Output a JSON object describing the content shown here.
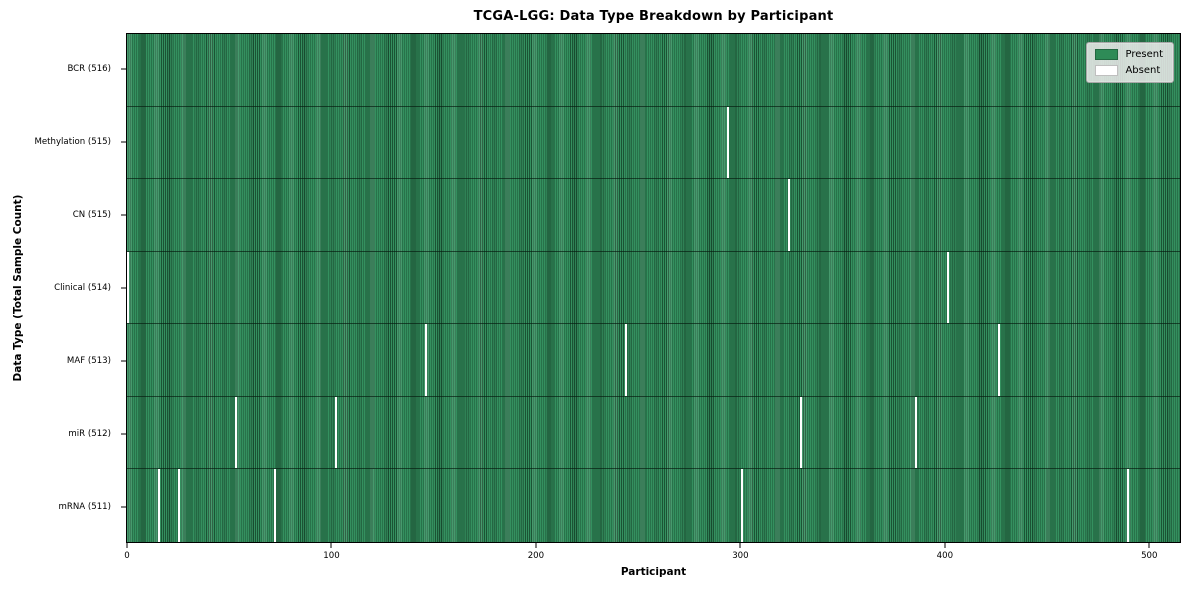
{
  "title": "TCGA-LGG: Data Type Breakdown by Participant",
  "axes": {
    "xlabel": "Participant",
    "ylabel": "Data Type (Total Sample Count)"
  },
  "legend": {
    "items": [
      {
        "label": "Present",
        "color": "#2e8b57"
      },
      {
        "label": "Absent",
        "color": "#ffffff"
      }
    ]
  },
  "chart_data": {
    "type": "heatmap",
    "title": "TCGA-LGG: Data Type Breakdown by Participant",
    "xlabel": "Participant",
    "ylabel": "Data Type (Total Sample Count)",
    "x_ticks": [
      0,
      100,
      200,
      300,
      400,
      500
    ],
    "x_range": [
      0,
      515
    ],
    "n_participants": 516,
    "grid": false,
    "legend_position": "upper right",
    "colors": {
      "present": "#2e8b57",
      "absent": "#ffffff"
    },
    "rows": [
      {
        "data_type": "BCR",
        "label": "BCR (516)",
        "present_count": 516,
        "absent_participants": []
      },
      {
        "data_type": "Methylation",
        "label": "Methylation (515)",
        "present_count": 515,
        "absent_participants": [
          294
        ]
      },
      {
        "data_type": "CN",
        "label": "CN (515)",
        "present_count": 515,
        "absent_participants": [
          324
        ]
      },
      {
        "data_type": "Clinical",
        "label": "Clinical (514)",
        "present_count": 514,
        "absent_participants": [
          0,
          402
        ]
      },
      {
        "data_type": "MAF",
        "label": "MAF (513)",
        "present_count": 513,
        "absent_participants": [
          146,
          244,
          427
        ]
      },
      {
        "data_type": "miR",
        "label": "miR (512)",
        "present_count": 512,
        "absent_participants": [
          53,
          102,
          330,
          386
        ]
      },
      {
        "data_type": "mRNA",
        "label": "mRNA (511)",
        "present_count": 511,
        "absent_participants": [
          15,
          25,
          72,
          301,
          490
        ]
      }
    ]
  }
}
